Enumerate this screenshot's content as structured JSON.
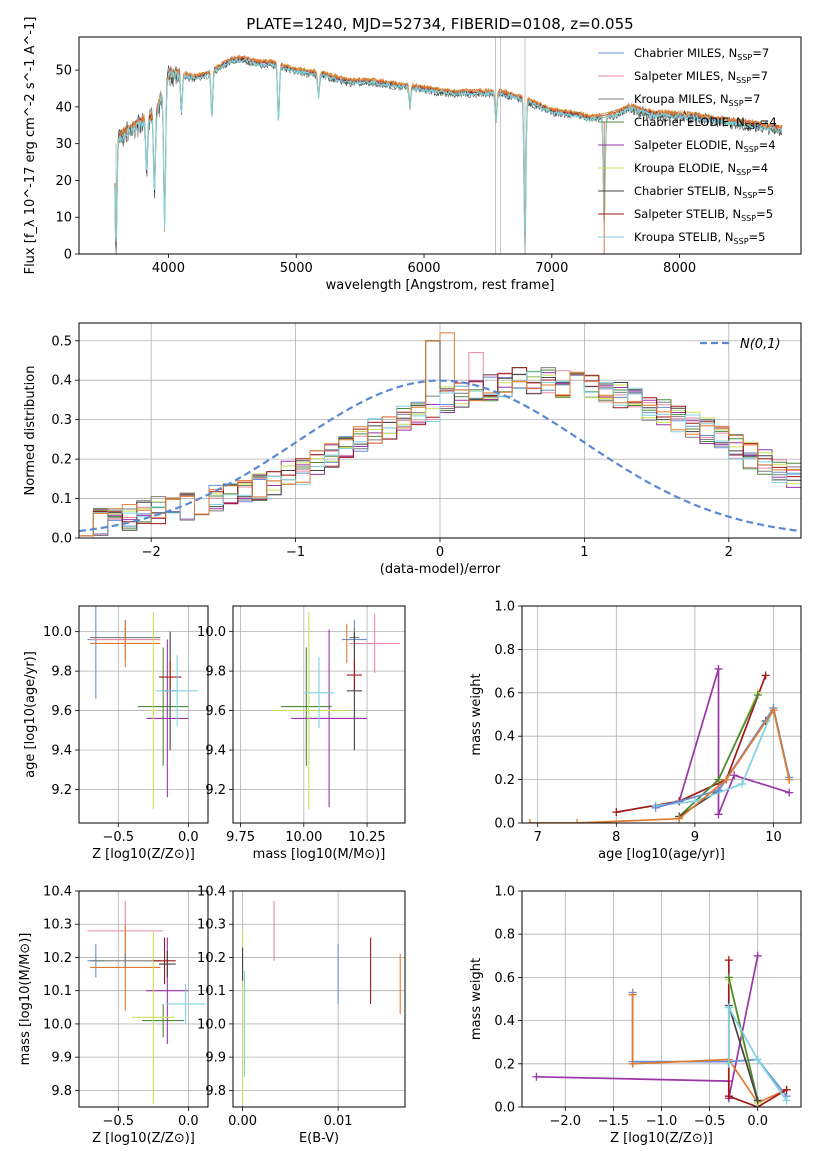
{
  "figure": {
    "title": "PLATE=1240, MJD=52734, FIBERID=0108, z=0.055"
  },
  "palette": {
    "chabrier_miles": "#6b8fd6",
    "salpeter_miles": "#e88aa8",
    "kroupa_miles": "#7e7e7e",
    "chabrier_elodie": "#4f8a3a",
    "salpeter_elodie": "#9a35a8",
    "kroupa_elodie": "#c8e05a",
    "chabrier_stelib": "#444444",
    "salpeter_stelib": "#a01818",
    "kroupa_stelib": "#7fd3df",
    "orange": "#e07a30",
    "gauss": "#5b8ad3"
  },
  "legend": [
    {
      "label": "Chabrier MILES, N",
      "sub": "SSP",
      "tail": "=7",
      "color": "chabrier_miles"
    },
    {
      "label": "Salpeter MILES, N",
      "sub": "SSP",
      "tail": "=7",
      "color": "salpeter_miles"
    },
    {
      "label": "Kroupa MILES, N",
      "sub": "SSP",
      "tail": "=7",
      "color": "kroupa_miles"
    },
    {
      "label": "Chabrier ELODIE, N",
      "sub": "SSP",
      "tail": "=4",
      "color": "chabrier_elodie"
    },
    {
      "label": "Salpeter ELODIE, N",
      "sub": "SSP",
      "tail": "=4",
      "color": "salpeter_elodie"
    },
    {
      "label": "Kroupa ELODIE, N",
      "sub": "SSP",
      "tail": "=4",
      "color": "kroupa_elodie"
    },
    {
      "label": "Chabrier STELIB, N",
      "sub": "SSP",
      "tail": "=5",
      "color": "chabrier_stelib"
    },
    {
      "label": "Salpeter STELIB, N",
      "sub": "SSP",
      "tail": "=5",
      "color": "salpeter_stelib"
    },
    {
      "label": "Kroupa STELIB, N",
      "sub": "SSP",
      "tail": "=5",
      "color": "kroupa_stelib"
    }
  ],
  "chart_data": [
    {
      "id": "spectrum",
      "type": "line",
      "xlabel": "wavelength [Angstrom, rest frame]",
      "ylabel": "Flux [f_λ 10^-17 erg cm^-2 s^-1 A^-1]",
      "xlim": [
        3300,
        8950
      ],
      "ylim": [
        0,
        59
      ],
      "xticks": [
        4000,
        5000,
        6000,
        7000,
        8000
      ],
      "yticks": [
        0,
        10,
        20,
        30,
        40,
        50
      ],
      "continuum": [
        [
          3580,
          31
        ],
        [
          3700,
          34
        ],
        [
          3800,
          36
        ],
        [
          3900,
          38
        ],
        [
          3960,
          44
        ],
        [
          4000,
          49
        ],
        [
          4100,
          49
        ],
        [
          4200,
          48
        ],
        [
          4300,
          49
        ],
        [
          4400,
          51
        ],
        [
          4500,
          53
        ],
        [
          4600,
          53
        ],
        [
          4700,
          52
        ],
        [
          4800,
          52
        ],
        [
          4900,
          51
        ],
        [
          5000,
          50
        ],
        [
          5200,
          49
        ],
        [
          5400,
          47
        ],
        [
          5600,
          47
        ],
        [
          5800,
          46
        ],
        [
          6000,
          45
        ],
        [
          6200,
          44
        ],
        [
          6400,
          44
        ],
        [
          6600,
          44
        ],
        [
          6800,
          42
        ],
        [
          7000,
          39
        ],
        [
          7200,
          38
        ],
        [
          7300,
          37
        ],
        [
          7500,
          38
        ],
        [
          7600,
          40
        ],
        [
          7800,
          38
        ],
        [
          8000,
          38
        ],
        [
          8200,
          37
        ],
        [
          8400,
          36
        ],
        [
          8600,
          35
        ],
        [
          8800,
          34
        ]
      ],
      "spikes": [
        [
          3590,
          -30
        ],
        [
          3830,
          -15
        ],
        [
          3890,
          -20
        ],
        [
          3970,
          -38
        ],
        [
          4102,
          -10
        ],
        [
          4340,
          -12
        ],
        [
          4861,
          -15
        ],
        [
          5175,
          -6
        ],
        [
          5890,
          -5
        ],
        [
          6563,
          -8
        ],
        [
          6790,
          -41
        ],
        [
          7410,
          -30
        ]
      ],
      "error_region": [
        7300,
        7560
      ]
    },
    {
      "id": "residuals",
      "type": "histogram",
      "xlabel": "(data-model)/error",
      "ylabel": "Normed distribution",
      "xlim": [
        -2.5,
        2.5
      ],
      "ylim": [
        0,
        0.545
      ],
      "xticks": [
        -2,
        -1,
        0,
        1,
        2
      ],
      "yticks": [
        0.0,
        0.1,
        0.2,
        0.3,
        0.4,
        0.5
      ],
      "legend_label": "N(0,1)",
      "bin_start": -2.5,
      "bin_width": 0.1,
      "base_heights": [
        0.04,
        0.04,
        0.05,
        0.05,
        0.06,
        0.07,
        0.07,
        0.08,
        0.09,
        0.1,
        0.11,
        0.12,
        0.13,
        0.14,
        0.16,
        0.17,
        0.19,
        0.21,
        0.23,
        0.25,
        0.27,
        0.28,
        0.3,
        0.32,
        0.33,
        0.35,
        0.36,
        0.37,
        0.38,
        0.39,
        0.4,
        0.4,
        0.4,
        0.39,
        0.39,
        0.38,
        0.37,
        0.36,
        0.35,
        0.33,
        0.32,
        0.3,
        0.29,
        0.27,
        0.25,
        0.23,
        0.21,
        0.19,
        0.17,
        0.16,
        0.14,
        0.13,
        0.11,
        0.1,
        0.09,
        0.08,
        0.07,
        0.06,
        0.05,
        0.05,
        0.04,
        0.04,
        0.04,
        0.03,
        0.03,
        0.03,
        0.03,
        0.03,
        0.03,
        0.03
      ],
      "peak_heights": {
        "bin_-0.1": 0.5,
        "bin_0.0": 0.52,
        "bin_0.2": 0.47
      }
    },
    {
      "id": "age_vs_Z",
      "type": "errorbar",
      "xlabel": "Z [log10(Z/Z⊙)]",
      "ylabel": "age [log10(age/yr)]",
      "xlim": [
        -0.78,
        0.14
      ],
      "ylim": [
        9.03,
        10.13
      ],
      "xticks": [
        -0.5,
        0.0
      ],
      "yticks": [
        9.2,
        9.4,
        9.6,
        9.8,
        10.0
      ],
      "points": [
        {
          "c": "chabrier_miles",
          "x": -0.66,
          "y": 9.96,
          "xe": 0.06,
          "ye": 0.3
        },
        {
          "c": "salpeter_miles",
          "x": -0.45,
          "y": 9.96,
          "xe": 0.25,
          "ye": 0.1
        },
        {
          "c": "kroupa_miles",
          "x": -0.45,
          "y": 9.97,
          "xe": 0.25,
          "ye": 0.05
        },
        {
          "c": "orange",
          "x": -0.45,
          "y": 9.94,
          "xe": 0.25,
          "ye": 0.12
        },
        {
          "c": "chabrier_elodie",
          "x": -0.18,
          "y": 9.62,
          "xe": 0.18,
          "ye": 0.3
        },
        {
          "c": "salpeter_elodie",
          "x": -0.15,
          "y": 9.56,
          "xe": 0.15,
          "ye": 0.4
        },
        {
          "c": "kroupa_elodie",
          "x": -0.25,
          "y": 9.6,
          "xe": 0.02,
          "ye": 0.5
        },
        {
          "c": "chabrier_stelib",
          "x": -0.13,
          "y": 9.7,
          "xe": 0.05,
          "ye": 0.3
        },
        {
          "c": "salpeter_stelib",
          "x": -0.13,
          "y": 9.77,
          "xe": 0.08,
          "ye": 0.08
        },
        {
          "c": "kroupa_stelib",
          "x": -0.08,
          "y": 9.7,
          "xe": 0.15,
          "ye": 0.18
        }
      ]
    },
    {
      "id": "age_vs_mass",
      "type": "errorbar",
      "xlabel": "mass [log10(M/M⊙)]",
      "ylabel": "",
      "xlim": [
        9.72,
        10.4
      ],
      "ylim": [
        9.03,
        10.13
      ],
      "xticks": [
        9.75,
        10.0,
        10.25
      ],
      "yticks": [
        9.2,
        9.4,
        9.6,
        9.8,
        10.0
      ],
      "points": [
        {
          "c": "chabrier_miles",
          "x": 10.2,
          "y": 9.96,
          "xe": 0.05,
          "ye": 0.1
        },
        {
          "c": "salpeter_miles",
          "x": 10.28,
          "y": 9.94,
          "xe": 0.1,
          "ye": 0.15
        },
        {
          "c": "orange",
          "x": 10.17,
          "y": 9.94,
          "xe": 0.0,
          "ye": 0.1
        },
        {
          "c": "kroupa_miles",
          "x": 10.2,
          "y": 9.97,
          "xe": 0.02,
          "ye": 0.05
        },
        {
          "c": "chabrier_elodie",
          "x": 10.01,
          "y": 9.62,
          "xe": 0.1,
          "ye": 0.3
        },
        {
          "c": "salpeter_elodie",
          "x": 10.1,
          "y": 9.56,
          "xe": 0.15,
          "ye": 0.45
        },
        {
          "c": "kroupa_elodie",
          "x": 10.02,
          "y": 9.6,
          "xe": 0.15,
          "ye": 0.5
        },
        {
          "c": "chabrier_stelib",
          "x": 10.2,
          "y": 9.7,
          "xe": 0.03,
          "ye": 0.3
        },
        {
          "c": "salpeter_stelib",
          "x": 10.2,
          "y": 9.78,
          "xe": 0.03,
          "ye": 0.08
        },
        {
          "c": "kroupa_stelib",
          "x": 10.06,
          "y": 9.69,
          "xe": 0.06,
          "ye": 0.18
        }
      ]
    },
    {
      "id": "mass_weight_vs_age",
      "type": "line",
      "xlabel": "age [log10(age/yr)]",
      "ylabel": "mass weight",
      "xlim": [
        6.8,
        10.35
      ],
      "ylim": [
        0,
        1.0
      ],
      "xticks": [
        7,
        8,
        9,
        10
      ],
      "yticks": [
        0.0,
        0.2,
        0.4,
        0.6,
        0.8,
        1.0
      ],
      "series": [
        {
          "c": "salpeter_elodie",
          "pts": [
            [
              8.8,
              0.1
            ],
            [
              9.3,
              0.71
            ],
            [
              9.3,
              0.04
            ],
            [
              9.5,
              0.22
            ],
            [
              10.2,
              0.14
            ]
          ]
        },
        {
          "c": "salpeter_stelib",
          "pts": [
            [
              8.0,
              0.05
            ],
            [
              8.8,
              0.1
            ],
            [
              9.4,
              0.2
            ],
            [
              9.9,
              0.68
            ]
          ]
        },
        {
          "c": "kroupa_elodie",
          "pts": [
            [
              8.8,
              0.03
            ],
            [
              9.3,
              0.2
            ],
            [
              9.8,
              0.6
            ]
          ]
        },
        {
          "c": "chabrier_elodie",
          "pts": [
            [
              8.8,
              0.03
            ],
            [
              9.3,
              0.2
            ],
            [
              9.8,
              0.59
            ]
          ]
        },
        {
          "c": "chabrier_stelib",
          "pts": [
            [
              8.8,
              0.03
            ],
            [
              9.3,
              0.15
            ],
            [
              9.9,
              0.47
            ]
          ]
        },
        {
          "c": "kroupa_stelib",
          "pts": [
            [
              8.5,
              0.08
            ],
            [
              9.0,
              0.1
            ],
            [
              9.6,
              0.18
            ],
            [
              10.0,
              0.53
            ],
            [
              10.2,
              0.2
            ]
          ]
        },
        {
          "c": "chabrier_miles",
          "pts": [
            [
              8.5,
              0.07
            ],
            [
              9.3,
              0.15
            ],
            [
              10.0,
              0.53
            ],
            [
              10.2,
              0.21
            ]
          ]
        },
        {
          "c": "orange",
          "pts": [
            [
              6.9,
              0.0
            ],
            [
              7.5,
              0.0
            ],
            [
              8.8,
              0.02
            ],
            [
              9.4,
              0.2
            ],
            [
              10.0,
              0.52
            ],
            [
              10.2,
              0.2
            ]
          ]
        }
      ]
    },
    {
      "id": "mass_vs_Z",
      "type": "errorbar",
      "xlabel": "Z [log10(Z/Z⊙)]",
      "ylabel": "mass [log10(M/M⊙)]",
      "xlim": [
        -0.78,
        0.14
      ],
      "ylim": [
        9.75,
        10.4
      ],
      "xticks": [
        -0.5,
        0.0
      ],
      "yticks": [
        9.8,
        9.9,
        10.0,
        10.1,
        10.2,
        10.3,
        10.4
      ],
      "points": [
        {
          "c": "chabrier_miles",
          "x": -0.66,
          "y": 10.19,
          "xe": 0.06,
          "ye": 0.05
        },
        {
          "c": "salpeter_miles",
          "x": -0.45,
          "y": 10.28,
          "xe": 0.27,
          "ye": 0.09
        },
        {
          "c": "orange",
          "x": -0.45,
          "y": 10.17,
          "xe": 0.25,
          "ye": 0.13
        },
        {
          "c": "kroupa_miles",
          "x": -0.45,
          "y": 10.19,
          "xe": 0.25,
          "ye": 0.02
        },
        {
          "c": "chabrier_elodie",
          "x": -0.18,
          "y": 10.01,
          "xe": 0.15,
          "ye": 0.05
        },
        {
          "c": "salpeter_elodie",
          "x": -0.15,
          "y": 10.1,
          "xe": 0.15,
          "ye": 0.16
        },
        {
          "c": "kroupa_elodie",
          "x": -0.25,
          "y": 10.02,
          "xe": 0.15,
          "ye": 0.26
        },
        {
          "c": "chabrier_stelib",
          "x": -0.15,
          "y": 10.18,
          "xe": 0.06,
          "ye": 0.04
        },
        {
          "c": "salpeter_stelib",
          "x": -0.17,
          "y": 10.19,
          "xe": 0.08,
          "ye": 0.07
        },
        {
          "c": "kroupa_stelib",
          "x": -0.02,
          "y": 10.06,
          "xe": 0.14,
          "ye": 0.06
        }
      ]
    },
    {
      "id": "mass_vs_ebv",
      "type": "errorbar",
      "xlabel": "E(B-V)",
      "ylabel": "",
      "xlim": [
        -0.001,
        0.017
      ],
      "ylim": [
        9.75,
        10.4
      ],
      "xticks": [
        0.0,
        0.01
      ],
      "yticks": [
        9.8,
        9.9,
        10.0,
        10.1,
        10.2,
        10.3,
        10.4
      ],
      "points": [
        {
          "c": "chabrier_miles",
          "x": 0.01,
          "y": 10.15,
          "xe": 0,
          "ye": 0.09
        },
        {
          "c": "salpeter_miles",
          "x": 0.0033,
          "y": 10.28,
          "xe": 0,
          "ye": 0.09
        },
        {
          "c": "salpeter_stelib",
          "x": 0.0134,
          "y": 10.16,
          "xe": 0,
          "ye": 0.1
        },
        {
          "c": "orange",
          "x": 0.0165,
          "y": 10.12,
          "xe": 0,
          "ye": 0.09
        },
        {
          "c": "kroupa_elodie",
          "x": 0.0,
          "y": 10.02,
          "xe": 0,
          "ye": 0.26
        },
        {
          "c": "chabrier_stelib",
          "x": 0.0,
          "y": 10.18,
          "xe": 0,
          "ye": 0.05
        },
        {
          "c": "kroupa_stelib",
          "x": 0.0002,
          "y": 10.0,
          "xe": 0,
          "ye": 0.16
        }
      ]
    },
    {
      "id": "mass_weight_vs_Z",
      "type": "line",
      "xlabel": "Z [log10(Z/Z⊙)]",
      "ylabel": "mass weight",
      "xlim": [
        -2.45,
        0.45
      ],
      "ylim": [
        0,
        1.0
      ],
      "xticks": [
        -2.0,
        -1.5,
        -1.0,
        -0.5,
        0.0
      ],
      "yticks": [
        0.0,
        0.2,
        0.4,
        0.6,
        0.8,
        1.0
      ],
      "series": [
        {
          "c": "salpeter_elodie",
          "pts": [
            [
              -2.3,
              0.14
            ],
            [
              -0.3,
              0.12
            ],
            [
              -0.3,
              0.04
            ],
            [
              0.0,
              0.7
            ]
          ]
        },
        {
          "c": "chabrier_miles",
          "pts": [
            [
              -1.3,
              0.53
            ],
            [
              -1.3,
              0.21
            ],
            [
              -0.3,
              0.21
            ],
            [
              0.0,
              0.22
            ],
            [
              0.3,
              0.05
            ]
          ]
        },
        {
          "c": "orange",
          "pts": [
            [
              -1.3,
              0.52
            ],
            [
              -1.3,
              0.2
            ],
            [
              -0.3,
              0.22
            ],
            [
              0.0,
              0.02
            ],
            [
              0.3,
              0.08
            ]
          ]
        },
        {
          "c": "salpeter_stelib",
          "pts": [
            [
              -0.3,
              0.68
            ],
            [
              -0.3,
              0.05
            ],
            [
              0.0,
              0.0
            ],
            [
              0.3,
              0.08
            ]
          ]
        },
        {
          "c": "kroupa_elodie",
          "pts": [
            [
              -0.3,
              0.59
            ],
            [
              0.0,
              0.02
            ]
          ]
        },
        {
          "c": "chabrier_elodie",
          "pts": [
            [
              -0.3,
              0.6
            ],
            [
              0.0,
              0.03
            ]
          ]
        },
        {
          "c": "chabrier_stelib",
          "pts": [
            [
              -0.3,
              0.47
            ],
            [
              0.0,
              0.03
            ]
          ]
        },
        {
          "c": "kroupa_stelib",
          "pts": [
            [
              -0.3,
              0.2
            ],
            [
              -0.3,
              0.46
            ],
            [
              0.0,
              0.22
            ],
            [
              0.3,
              0.03
            ]
          ]
        }
      ]
    }
  ]
}
